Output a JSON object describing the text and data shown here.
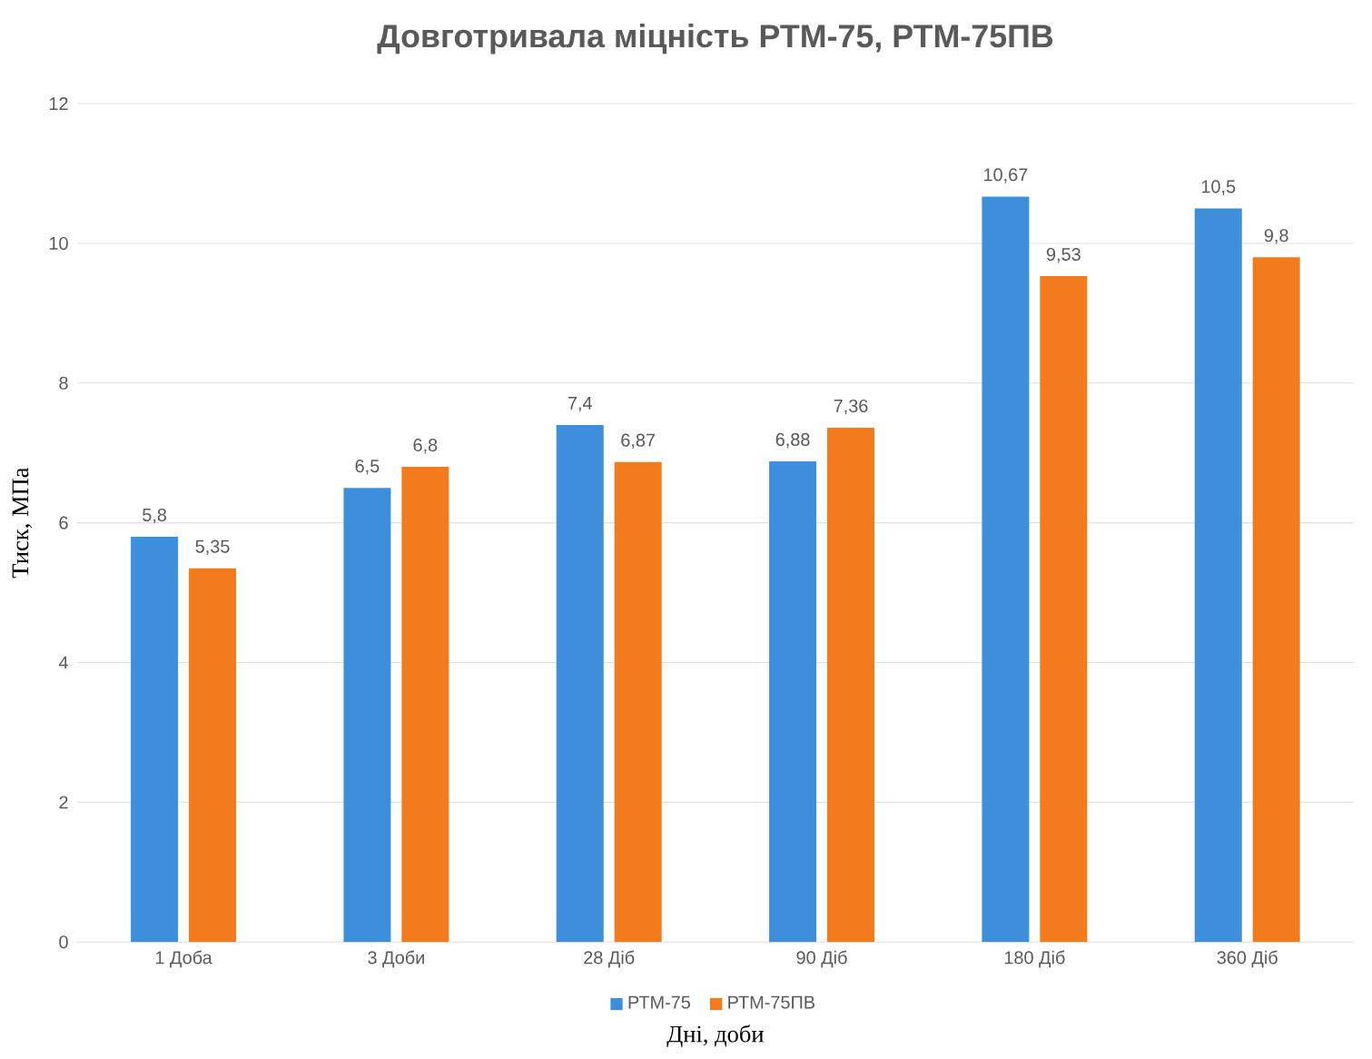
{
  "chart_data": {
    "type": "bar",
    "title": "Довготривала міцність РТМ-75, РТМ-75ПВ",
    "xlabel": "Дні, доби",
    "ylabel": "Тиск, МПа",
    "categories": [
      "1 Доба",
      "3 Доби",
      "28 Діб",
      "90 Діб",
      "180 Діб",
      "360 Діб"
    ],
    "series": [
      {
        "name": "РТМ-75",
        "color": "#3d8fdc",
        "values": [
          5.8,
          6.5,
          7.4,
          6.88,
          10.67,
          10.5
        ],
        "value_labels": [
          "5,8",
          "6,5",
          "7,4",
          "6,88",
          "10,67",
          "10,5"
        ]
      },
      {
        "name": "РТМ-75ПВ",
        "color": "#f47b1c",
        "values": [
          5.35,
          6.8,
          6.87,
          7.36,
          9.53,
          9.8
        ],
        "value_labels": [
          "5,35",
          "6,8",
          "6,87",
          "7,36",
          "9,53",
          "9,8"
        ]
      }
    ],
    "ylim": [
      0,
      12
    ],
    "yticks": [
      0,
      2,
      4,
      6,
      8,
      10,
      12
    ],
    "grid": "y",
    "legend": "bottom"
  }
}
